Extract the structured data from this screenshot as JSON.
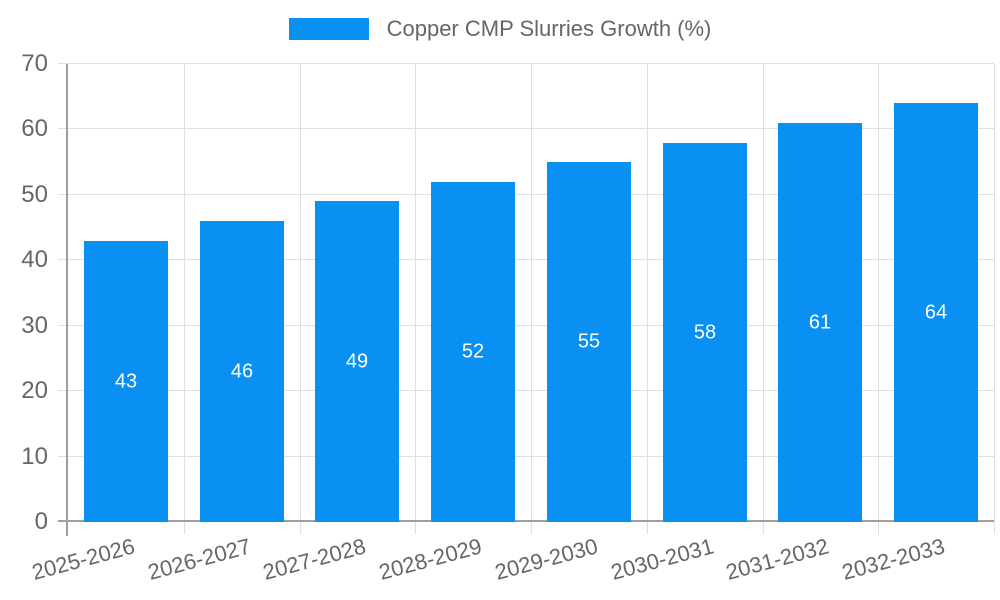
{
  "legend": {
    "label": "Copper CMP Slurries Growth (%)"
  },
  "chart_data": {
    "type": "bar",
    "title": "Copper CMP Slurries Growth (%)",
    "categories": [
      "2025-2026",
      "2026-2027",
      "2027-2028",
      "2028-2029",
      "2029-2030",
      "2030-2031",
      "2031-2032",
      "2032-2033"
    ],
    "series": [
      {
        "name": "Copper CMP Slurries Growth (%)",
        "values": [
          43,
          46,
          49,
          52,
          55,
          58,
          61,
          64
        ]
      }
    ],
    "xlabel": "",
    "ylabel": "",
    "ylim": [
      0,
      70
    ],
    "ytick_step": 10,
    "yticks": [
      0,
      10,
      20,
      30,
      40,
      50,
      60,
      70
    ],
    "grid": true,
    "legend_position": "top",
    "bar_color": "#0a90f2",
    "bar_label_color": "#ffffff",
    "grid_color": "#e0e0e0",
    "axis_color": "#9e9e9e",
    "tick_label_color": "#666666"
  }
}
